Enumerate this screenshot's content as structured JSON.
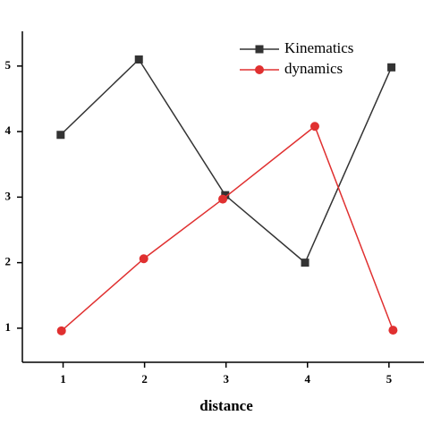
{
  "chart_data": {
    "type": "line",
    "x_label": "distance",
    "xlim": [
      0.5,
      5.43
    ],
    "xticks": [
      1,
      2,
      3,
      4,
      5
    ],
    "ylim": [
      0.48,
      5.53
    ],
    "yticks": [
      1,
      2,
      3,
      4,
      5
    ],
    "legend": "upper-right",
    "series": [
      {
        "name": "Kinematics",
        "color": "#333333",
        "marker": "square",
        "x": [
          0.97,
          1.93,
          2.99,
          3.97,
          5.03
        ],
        "values": [
          3.95,
          5.1,
          3.03,
          2.0,
          4.98
        ]
      },
      {
        "name": "dynamics",
        "color": "#e03030",
        "marker": "circle",
        "x": [
          0.98,
          1.99,
          2.96,
          4.09,
          5.05
        ],
        "values": [
          0.96,
          2.06,
          2.97,
          4.08,
          0.97
        ]
      }
    ]
  }
}
